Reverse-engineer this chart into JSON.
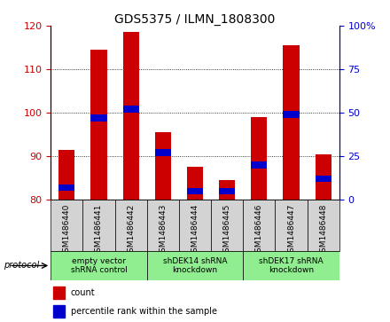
{
  "title": "GDS5375 / ILMN_1808300",
  "samples": [
    "GSM1486440",
    "GSM1486441",
    "GSM1486442",
    "GSM1486443",
    "GSM1486444",
    "GSM1486445",
    "GSM1486446",
    "GSM1486447",
    "GSM1486448"
  ],
  "counts": [
    91.5,
    114.5,
    118.5,
    95.5,
    87.5,
    84.5,
    99.0,
    115.5,
    90.5
  ],
  "percentiles": [
    7,
    47,
    52,
    27,
    5,
    5,
    20,
    49,
    12
  ],
  "ylim_left": [
    80,
    120
  ],
  "ylim_right": [
    0,
    100
  ],
  "yticks_left": [
    80,
    90,
    100,
    110,
    120
  ],
  "yticks_right": [
    0,
    25,
    50,
    75,
    100
  ],
  "ylabel_left_color": "#cc0000",
  "ylabel_right_color": "#0000cc",
  "bar_width": 0.5,
  "red_color": "#cc0000",
  "blue_color": "#0000cc",
  "group_ranges": [
    [
      0,
      3
    ],
    [
      3,
      6
    ],
    [
      6,
      9
    ]
  ],
  "group_labels": [
    "empty vector\nshRNA control",
    "shDEK14 shRNA\nknockdown",
    "shDEK17 shRNA\nknockdown"
  ],
  "group_color": "#90ee90",
  "legend_count_label": "count",
  "legend_percentile_label": "percentile rank within the sample",
  "protocol_label": "protocol"
}
